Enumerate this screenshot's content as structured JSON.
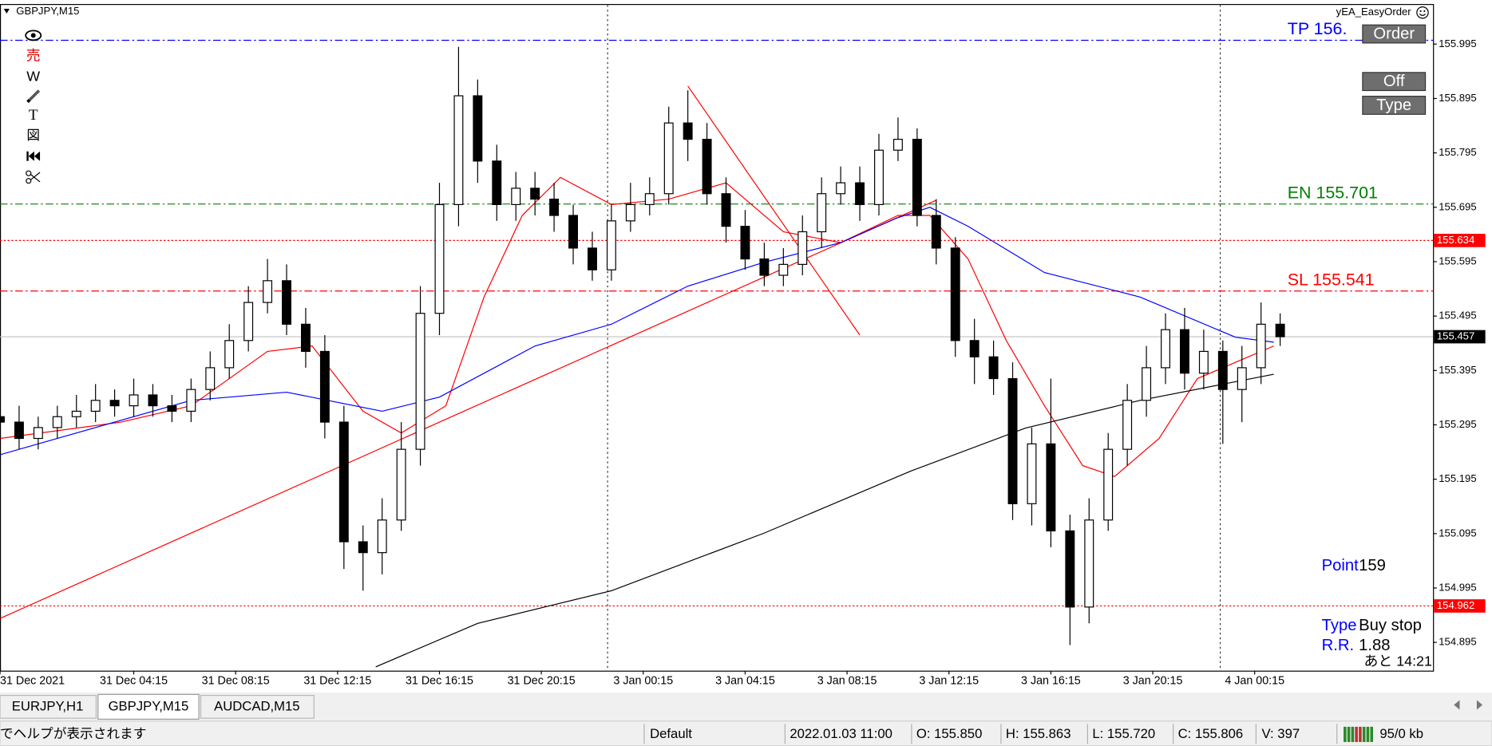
{
  "window": {
    "symbol": "GBPJPY,M15",
    "ea_name": "yEA_EasyOrder"
  },
  "toolbar": [
    "売",
    "W",
    "T",
    "図"
  ],
  "buttons": [
    "Order",
    "Off",
    "Type"
  ],
  "panel": {
    "point_label": "Point",
    "point": 159,
    "type_label": "Type",
    "type": "Buy stop",
    "rr_label": "R.R.",
    "rr": 1.88,
    "remaining": "あと 14:21"
  },
  "chart_data": {
    "type": "candlestick",
    "up_color": "#ffffff",
    "down_color": "#000000",
    "outline_color": "#000000",
    "x": [
      0,
      3,
      6,
      9,
      12,
      15,
      18,
      21,
      24,
      27,
      30,
      33,
      36,
      39,
      42,
      45,
      48,
      51,
      54,
      57,
      60,
      63,
      66,
      69,
      72,
      75,
      78,
      81,
      84,
      87,
      90,
      93,
      96,
      99,
      102,
      105,
      108,
      111,
      114,
      117,
      120,
      123,
      126,
      129,
      132,
      135,
      138,
      141,
      144,
      147,
      150,
      153,
      156,
      159,
      162,
      165,
      168,
      171,
      174,
      177,
      180,
      183,
      186,
      189,
      192,
      195,
      198,
      201
    ],
    "open": [
      155.31,
      155.3,
      155.27,
      155.29,
      155.31,
      155.32,
      155.34,
      155.33,
      155.35,
      155.33,
      155.32,
      155.36,
      155.4,
      155.45,
      155.52,
      155.56,
      155.48,
      155.43,
      155.3,
      155.08,
      155.06,
      155.12,
      155.25,
      155.5,
      155.7,
      155.9,
      155.78,
      155.7,
      155.73,
      155.71,
      155.68,
      155.62,
      155.58,
      155.67,
      155.7,
      155.72,
      155.85,
      155.82,
      155.72,
      155.66,
      155.6,
      155.57,
      155.59,
      155.65,
      155.72,
      155.74,
      155.7,
      155.8,
      155.82,
      155.68,
      155.62,
      155.45,
      155.42,
      155.38,
      155.15,
      155.26,
      155.1,
      154.96,
      155.12,
      155.25,
      155.34,
      155.4,
      155.47,
      155.39,
      155.43,
      155.36,
      155.4,
      155.48
    ],
    "high": [
      155.34,
      155.33,
      155.31,
      155.33,
      155.35,
      155.37,
      155.36,
      155.38,
      155.37,
      155.35,
      155.38,
      155.43,
      155.48,
      155.55,
      155.6,
      155.59,
      155.51,
      155.46,
      155.33,
      155.11,
      155.16,
      155.3,
      155.55,
      155.74,
      155.99,
      155.93,
      155.81,
      155.76,
      155.76,
      155.74,
      155.7,
      155.65,
      155.7,
      155.74,
      155.75,
      155.88,
      155.91,
      155.85,
      155.75,
      155.69,
      155.63,
      155.62,
      155.68,
      155.75,
      155.77,
      155.77,
      155.83,
      155.86,
      155.84,
      155.71,
      155.64,
      155.49,
      155.45,
      155.41,
      155.29,
      155.38,
      155.13,
      155.16,
      155.28,
      155.37,
      155.44,
      155.5,
      155.51,
      155.47,
      155.45,
      155.44,
      155.52,
      155.5
    ],
    "low": [
      155.22,
      155.25,
      155.25,
      155.27,
      155.29,
      155.3,
      155.31,
      155.31,
      155.31,
      155.3,
      155.3,
      155.34,
      155.38,
      155.43,
      155.5,
      155.46,
      155.4,
      155.27,
      155.03,
      154.99,
      155.02,
      155.1,
      155.22,
      155.46,
      155.66,
      155.74,
      155.67,
      155.67,
      155.68,
      155.65,
      155.59,
      155.56,
      155.56,
      155.65,
      155.68,
      155.7,
      155.78,
      155.7,
      155.63,
      155.58,
      155.55,
      155.55,
      155.57,
      155.62,
      155.7,
      155.67,
      155.68,
      155.78,
      155.66,
      155.59,
      155.42,
      155.37,
      155.35,
      155.12,
      155.11,
      155.07,
      154.89,
      154.93,
      155.1,
      155.22,
      155.31,
      155.37,
      155.36,
      155.36,
      155.26,
      155.3,
      155.37,
      155.44
    ],
    "close": [
      155.3,
      155.27,
      155.29,
      155.31,
      155.32,
      155.34,
      155.33,
      155.35,
      155.33,
      155.32,
      155.36,
      155.4,
      155.45,
      155.52,
      155.56,
      155.48,
      155.43,
      155.3,
      155.08,
      155.06,
      155.12,
      155.25,
      155.5,
      155.7,
      155.9,
      155.78,
      155.7,
      155.73,
      155.71,
      155.68,
      155.62,
      155.58,
      155.67,
      155.7,
      155.72,
      155.85,
      155.82,
      155.72,
      155.66,
      155.6,
      155.57,
      155.59,
      155.65,
      155.72,
      155.74,
      155.7,
      155.8,
      155.82,
      155.68,
      155.62,
      155.45,
      155.42,
      155.38,
      155.15,
      155.26,
      155.1,
      154.96,
      155.12,
      155.25,
      155.34,
      155.4,
      155.47,
      155.39,
      155.43,
      155.36,
      155.4,
      155.48,
      155.457
    ],
    "xlim": [
      0,
      225
    ],
    "ylim": [
      154.843,
      156.067
    ],
    "xticks": [
      {
        "value": 0,
        "label": "31 Dec 2021"
      },
      {
        "value": 21,
        "label": "31 Dec 04:15"
      },
      {
        "value": 37,
        "label": "31 Dec 08:15"
      },
      {
        "value": 53,
        "label": "31 Dec 12:15"
      },
      {
        "value": 69,
        "label": "31 Dec 16:15"
      },
      {
        "value": 85,
        "label": "31 Dec 20:15"
      },
      {
        "value": 101,
        "label": "3 Jan 00:15"
      },
      {
        "value": 117,
        "label": "3 Jan 04:15"
      },
      {
        "value": 133,
        "label": "3 Jan 08:15"
      },
      {
        "value": 149,
        "label": "3 Jan 12:15"
      },
      {
        "value": 165,
        "label": "3 Jan 16:15"
      },
      {
        "value": 181,
        "label": "3 Jan 20:15"
      },
      {
        "value": 197,
        "label": "4 Jan 00:15"
      }
    ],
    "yticks": [
      155.995,
      155.895,
      155.795,
      155.695,
      155.595,
      155.495,
      155.395,
      155.295,
      155.195,
      155.095,
      154.995,
      154.895
    ],
    "separators": [
      95.4,
      191.6
    ],
    "moving_averages": [
      {
        "color": "#ff0000",
        "x": [
          0,
          19,
          30,
          42,
          49,
          57,
          63,
          70,
          76,
          82,
          88,
          96,
          105,
          114,
          123,
          132,
          141,
          146,
          152,
          158,
          164,
          170,
          175,
          182,
          188,
          194,
          200
        ],
        "values": [
          155.27,
          155.3,
          155.33,
          155.43,
          155.44,
          155.32,
          155.28,
          155.33,
          155.53,
          155.68,
          155.75,
          155.7,
          155.71,
          155.74,
          155.65,
          155.63,
          155.68,
          155.68,
          155.6,
          155.45,
          155.33,
          155.22,
          155.2,
          155.27,
          155.38,
          155.41,
          155.44
        ]
      },
      {
        "color": "#0000ff",
        "x": [
          0,
          30,
          45,
          60,
          69,
          84,
          96,
          108,
          120,
          132,
          141,
          146,
          152,
          164,
          179,
          194,
          200
        ],
        "values": [
          155.24,
          155.34,
          155.355,
          155.32,
          155.346,
          155.44,
          155.48,
          155.55,
          155.594,
          155.63,
          155.676,
          155.695,
          155.66,
          155.575,
          155.53,
          155.456,
          155.447
        ]
      },
      {
        "color": "#000000",
        "x": [
          59,
          75,
          96,
          120,
          143,
          161,
          179,
          200
        ],
        "values": [
          154.85,
          154.93,
          154.99,
          155.096,
          155.21,
          155.289,
          155.34,
          155.388
        ]
      }
    ],
    "trendlines": [
      {
        "color": "#ff0000",
        "x": [
          0,
          147
        ],
        "values": [
          154.939,
          155.708
        ]
      },
      {
        "color": "#ff0000",
        "x": [
          108,
          135
        ],
        "values": [
          155.918,
          155.46
        ]
      }
    ],
    "levels": [
      {
        "value": 156.002,
        "label": "TP  156.",
        "color": "#0000ff",
        "style": "dashdot"
      },
      {
        "value": 155.701,
        "label": "EN  155.701",
        "color": "#008000",
        "style": "dashdot"
      },
      {
        "value": 155.634,
        "color": "#ff0000",
        "style": "dot",
        "tag_color": "#ff0000"
      },
      {
        "value": 155.541,
        "label": "SL  155.541",
        "color": "#ff0000",
        "style": "dashdot"
      },
      {
        "value": 155.457,
        "color": "#c0c0c0",
        "style": "solid",
        "tag_color": "#000000"
      },
      {
        "value": 154.962,
        "color": "#ff0000",
        "style": "dot",
        "tag_color": "#ff0000"
      }
    ]
  },
  "tabs": [
    "EURJPY,H1",
    "GBPJPY,M15",
    "AUDCAD,M15"
  ],
  "status_bar": {
    "help": "でヘルプが表示されます",
    "profile": "Default",
    "time": "2022.01.03 11:00",
    "open": "O: 155.850",
    "high": "H: 155.863",
    "low": "L: 155.720",
    "close": "C: 155.806",
    "volume": "V: 397",
    "traffic": "95/0 kb"
  }
}
